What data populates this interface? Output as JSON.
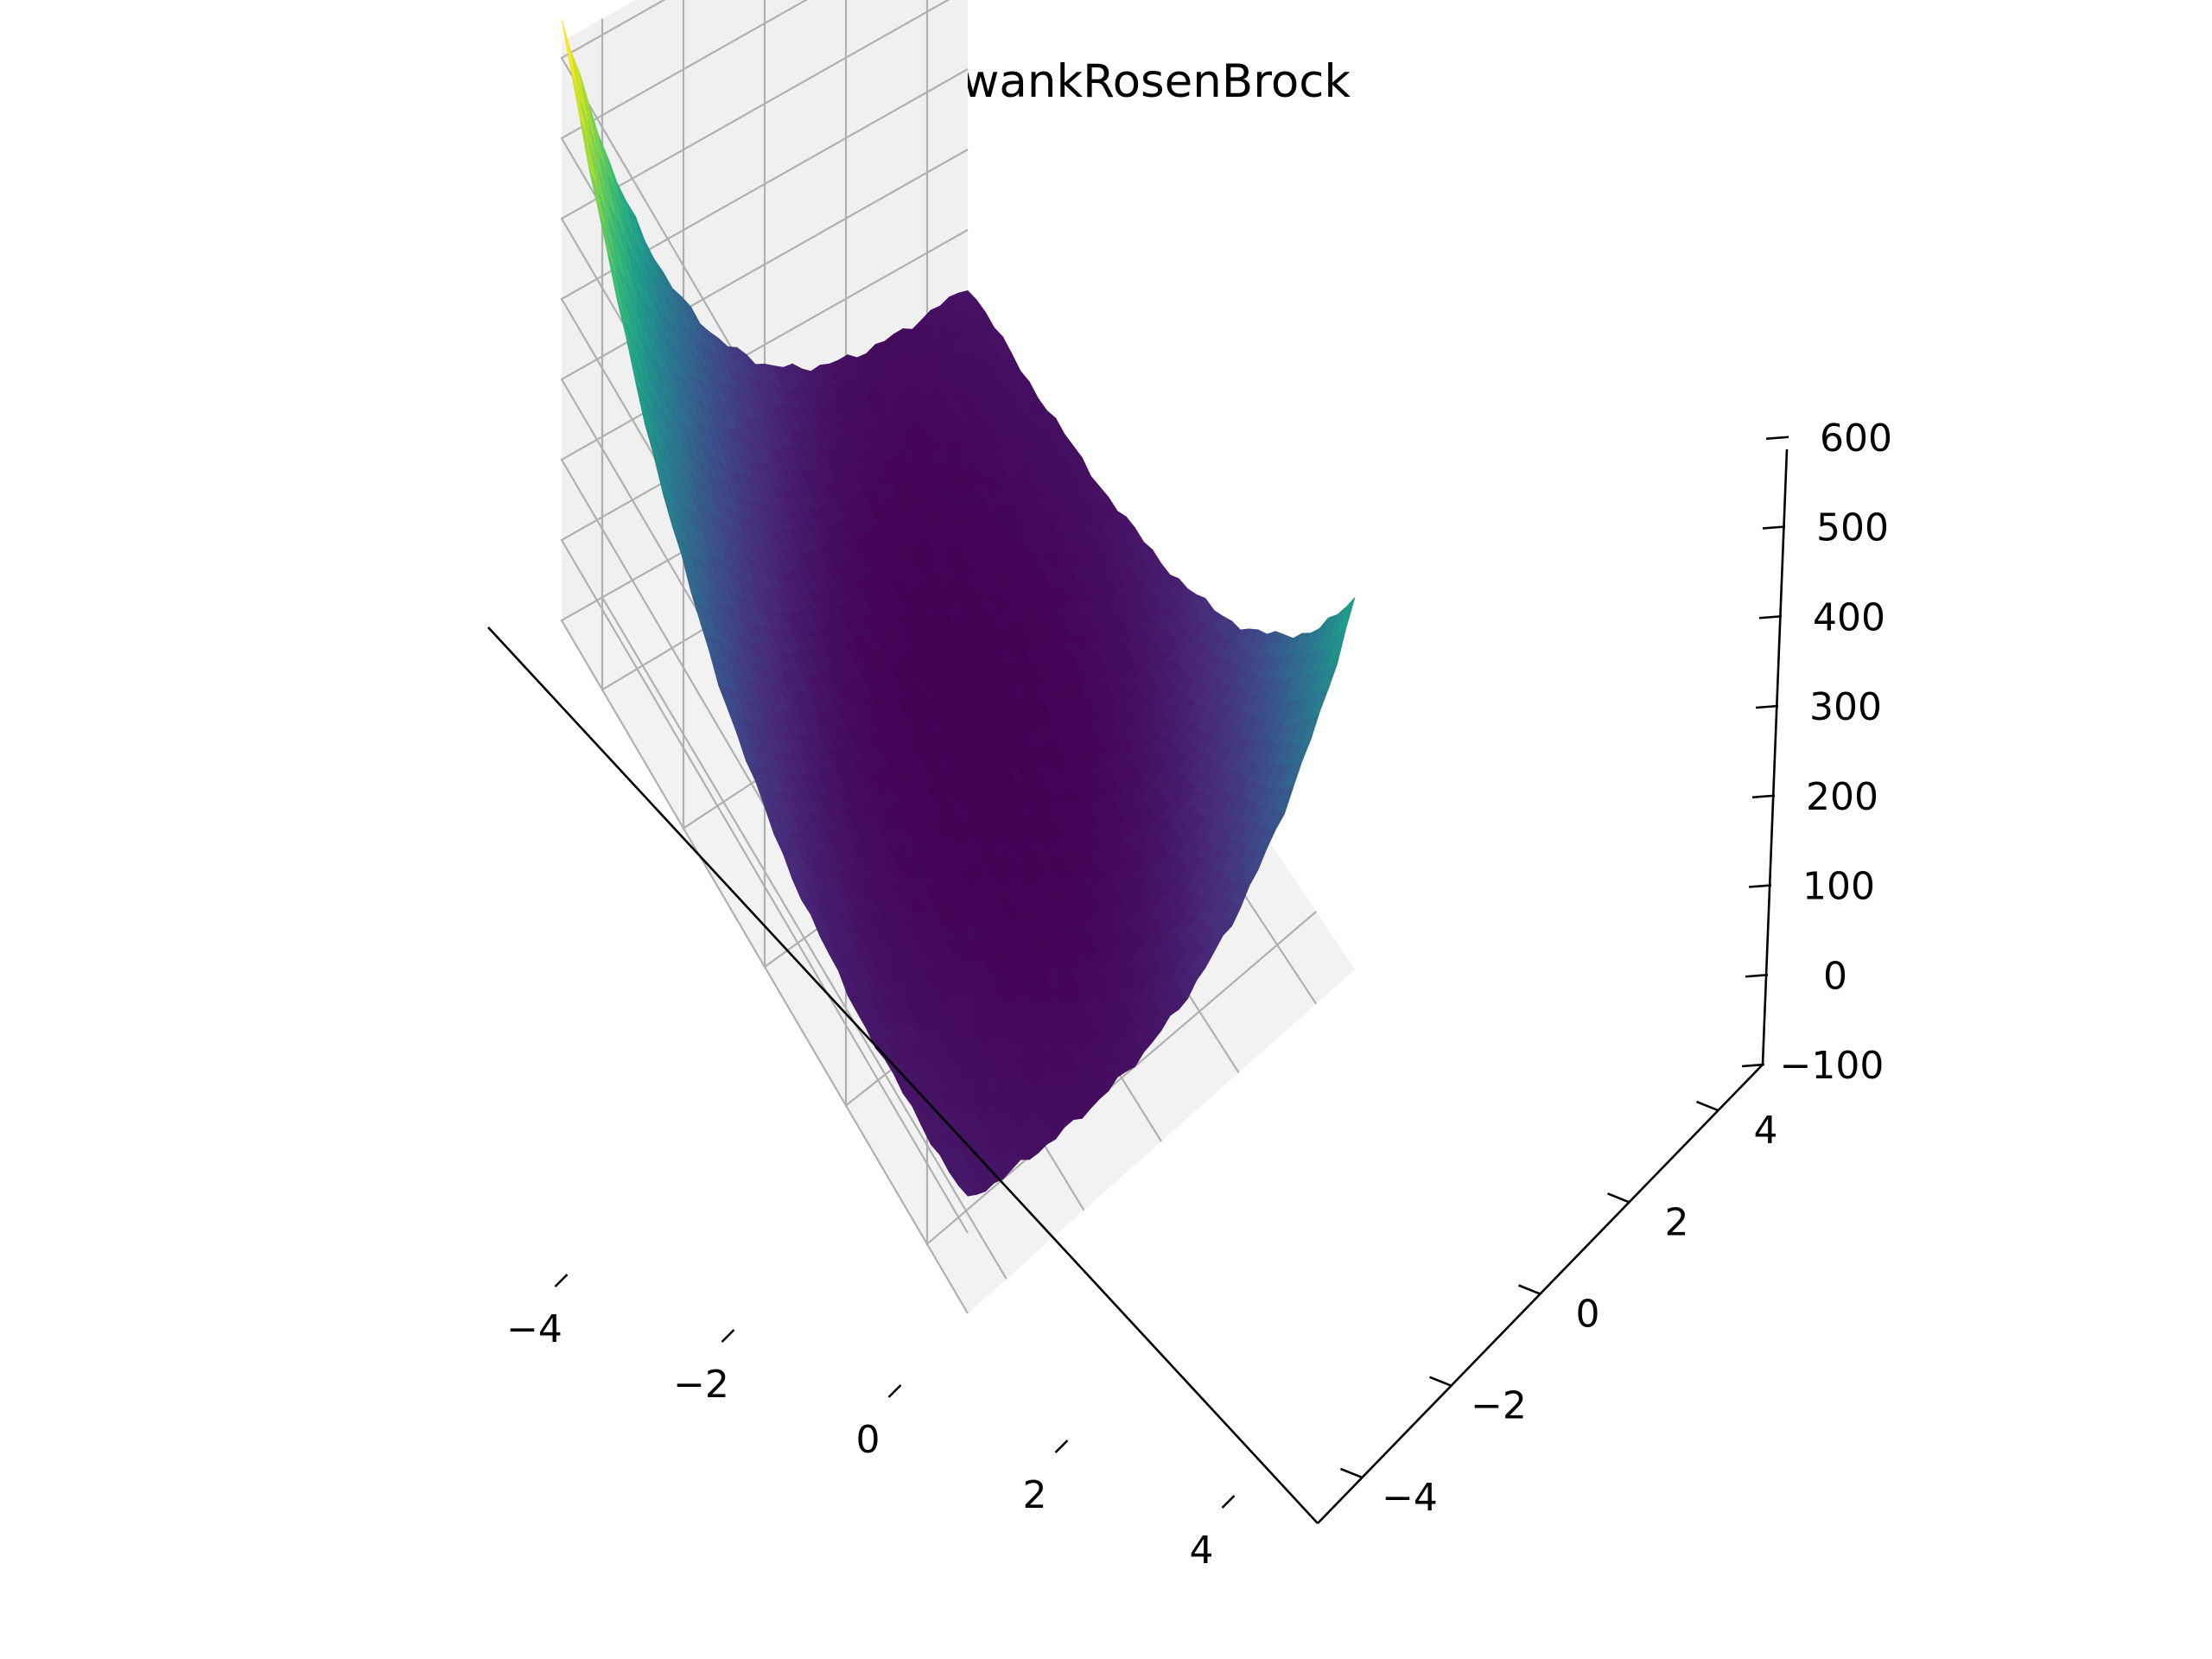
{
  "chart_data": {
    "type": "surface3d",
    "title": "GriewankRosenBrock",
    "xlabel": "",
    "ylabel": "",
    "zlabel": "",
    "x_ticks": [
      -4,
      -2,
      0,
      2,
      4
    ],
    "y_ticks": [
      -4,
      -2,
      0,
      2,
      4
    ],
    "z_ticks": [
      -100,
      0,
      100,
      200,
      300,
      400,
      500,
      600
    ],
    "x_tick_labels": [
      "−4",
      "−2",
      "0",
      "2",
      "4"
    ],
    "y_tick_labels": [
      "−4",
      "−2",
      "0",
      "2",
      "4"
    ],
    "z_tick_labels": [
      "−100",
      "0",
      "100",
      "200",
      "300",
      "400",
      "500",
      "600"
    ],
    "xlim": [
      -5,
      5
    ],
    "ylim": [
      -5,
      5
    ],
    "zlim": [
      -100,
      620
    ],
    "colormap": "viridis",
    "grid": true,
    "surface_peaks": [
      {
        "x": -5,
        "y": 5,
        "z": 610
      },
      {
        "x": 5,
        "y": -5,
        "z": 330
      }
    ],
    "surface_min": {
      "x": 0.5,
      "y": 0,
      "z": 0
    }
  },
  "colors": {
    "pane_left": "#f5f5f5",
    "pane_back": "#f0f0f0",
    "pane_floor": "#f2f2f2",
    "grid": "#b0b0b0",
    "viridis": [
      "#440154",
      "#482878",
      "#3e4989",
      "#31688e",
      "#26828e",
      "#1f9e89",
      "#35b779",
      "#6ece58",
      "#b5de2b",
      "#fde725"
    ]
  }
}
